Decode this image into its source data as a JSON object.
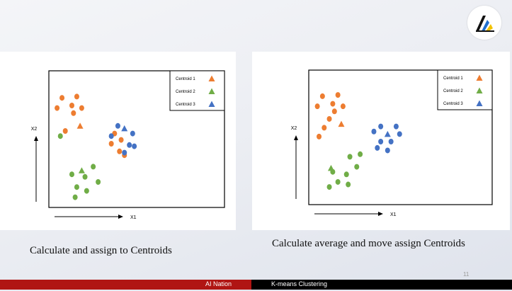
{
  "logo": {
    "name": "ai-nation-logo-icon"
  },
  "slide": {
    "left_caption": "Calculate and assign to Centroids",
    "right_caption": "Calculate average and move assign Centroids",
    "page_number": "11"
  },
  "footer": {
    "left_text": "AI Nation",
    "right_text": "K-means Clustering",
    "accent_color": "#b01513"
  },
  "colors": {
    "cluster1": "#ed7d31",
    "cluster2": "#70ad47",
    "cluster3": "#4472c4"
  },
  "chart_data": [
    {
      "type": "scatter",
      "title": "",
      "xlabel": "X1",
      "ylabel": "X2",
      "xlim": [
        0,
        100
      ],
      "ylim": [
        0,
        100
      ],
      "legend_position": "top-right",
      "series": [
        {
          "name": "cluster-1-points",
          "color": "#ed7d31",
          "marker": "circle",
          "points": [
            [
              8,
              86
            ],
            [
              17,
              87
            ],
            [
              5,
              78
            ],
            [
              14,
              80
            ],
            [
              20,
              78
            ],
            [
              15,
              74
            ],
            [
              10,
              60
            ],
            [
              40,
              58
            ],
            [
              44,
              53
            ],
            [
              38,
              50
            ],
            [
              43,
              44
            ],
            [
              46,
              41
            ]
          ]
        },
        {
          "name": "cluster-2-points",
          "color": "#70ad47",
          "marker": "circle",
          "points": [
            [
              7,
              56
            ],
            [
              27,
              32
            ],
            [
              14,
              26
            ],
            [
              22,
              24
            ],
            [
              30,
              20
            ],
            [
              17,
              16
            ],
            [
              23,
              13
            ],
            [
              16,
              8
            ]
          ]
        },
        {
          "name": "cluster-3-points",
          "color": "#4472c4",
          "marker": "circle",
          "points": [
            [
              42,
              64
            ],
            [
              51,
              58
            ],
            [
              38,
              56
            ],
            [
              49,
              49
            ],
            [
              52,
              48
            ],
            [
              46,
              43
            ]
          ]
        },
        {
          "name": "Centroid 1",
          "color": "#ed7d31",
          "marker": "triangle",
          "points": [
            [
              19,
              64
            ]
          ]
        },
        {
          "name": "Centroid 2",
          "color": "#70ad47",
          "marker": "triangle",
          "points": [
            [
              20,
              29
            ]
          ]
        },
        {
          "name": "Centroid 3",
          "color": "#4472c4",
          "marker": "triangle",
          "points": [
            [
              46,
              62
            ]
          ]
        }
      ],
      "legend": [
        "Centroid 1",
        "Centroid 2",
        "Centroid 3"
      ]
    },
    {
      "type": "scatter",
      "title": "",
      "xlabel": "X1",
      "ylabel": "X2",
      "xlim": [
        0,
        100
      ],
      "ylim": [
        0,
        100
      ],
      "legend_position": "top-right",
      "series": [
        {
          "name": "cluster-1-points",
          "color": "#ed7d31",
          "marker": "circle",
          "points": [
            [
              8,
              86
            ],
            [
              17,
              87
            ],
            [
              5,
              78
            ],
            [
              14,
              80
            ],
            [
              20,
              78
            ],
            [
              15,
              74
            ],
            [
              9,
              61
            ],
            [
              6,
              54
            ],
            [
              12,
              68
            ]
          ]
        },
        {
          "name": "cluster-2-points",
          "color": "#70ad47",
          "marker": "circle",
          "points": [
            [
              24,
              38
            ],
            [
              30,
              40
            ],
            [
              14,
              26
            ],
            [
              22,
              24
            ],
            [
              28,
              30
            ],
            [
              17,
              18
            ],
            [
              23,
              16
            ],
            [
              12,
              14
            ]
          ]
        },
        {
          "name": "cluster-3-points",
          "color": "#4472c4",
          "marker": "circle",
          "points": [
            [
              42,
              62
            ],
            [
              51,
              62
            ],
            [
              38,
              58
            ],
            [
              53,
              56
            ],
            [
              48,
              50
            ],
            [
              42,
              50
            ],
            [
              40,
              45
            ],
            [
              46,
              43
            ]
          ]
        },
        {
          "name": "Centroid 1",
          "color": "#ed7d31",
          "marker": "triangle",
          "points": [
            [
              19,
              64
            ]
          ]
        },
        {
          "name": "Centroid 2",
          "color": "#70ad47",
          "marker": "triangle",
          "points": [
            [
              13,
              29
            ]
          ]
        },
        {
          "name": "Centroid 3",
          "color": "#4472c4",
          "marker": "triangle",
          "points": [
            [
              46,
              56
            ]
          ]
        }
      ],
      "legend": [
        "Centroid 1",
        "Centroid 2",
        "Centroid 3"
      ]
    }
  ]
}
